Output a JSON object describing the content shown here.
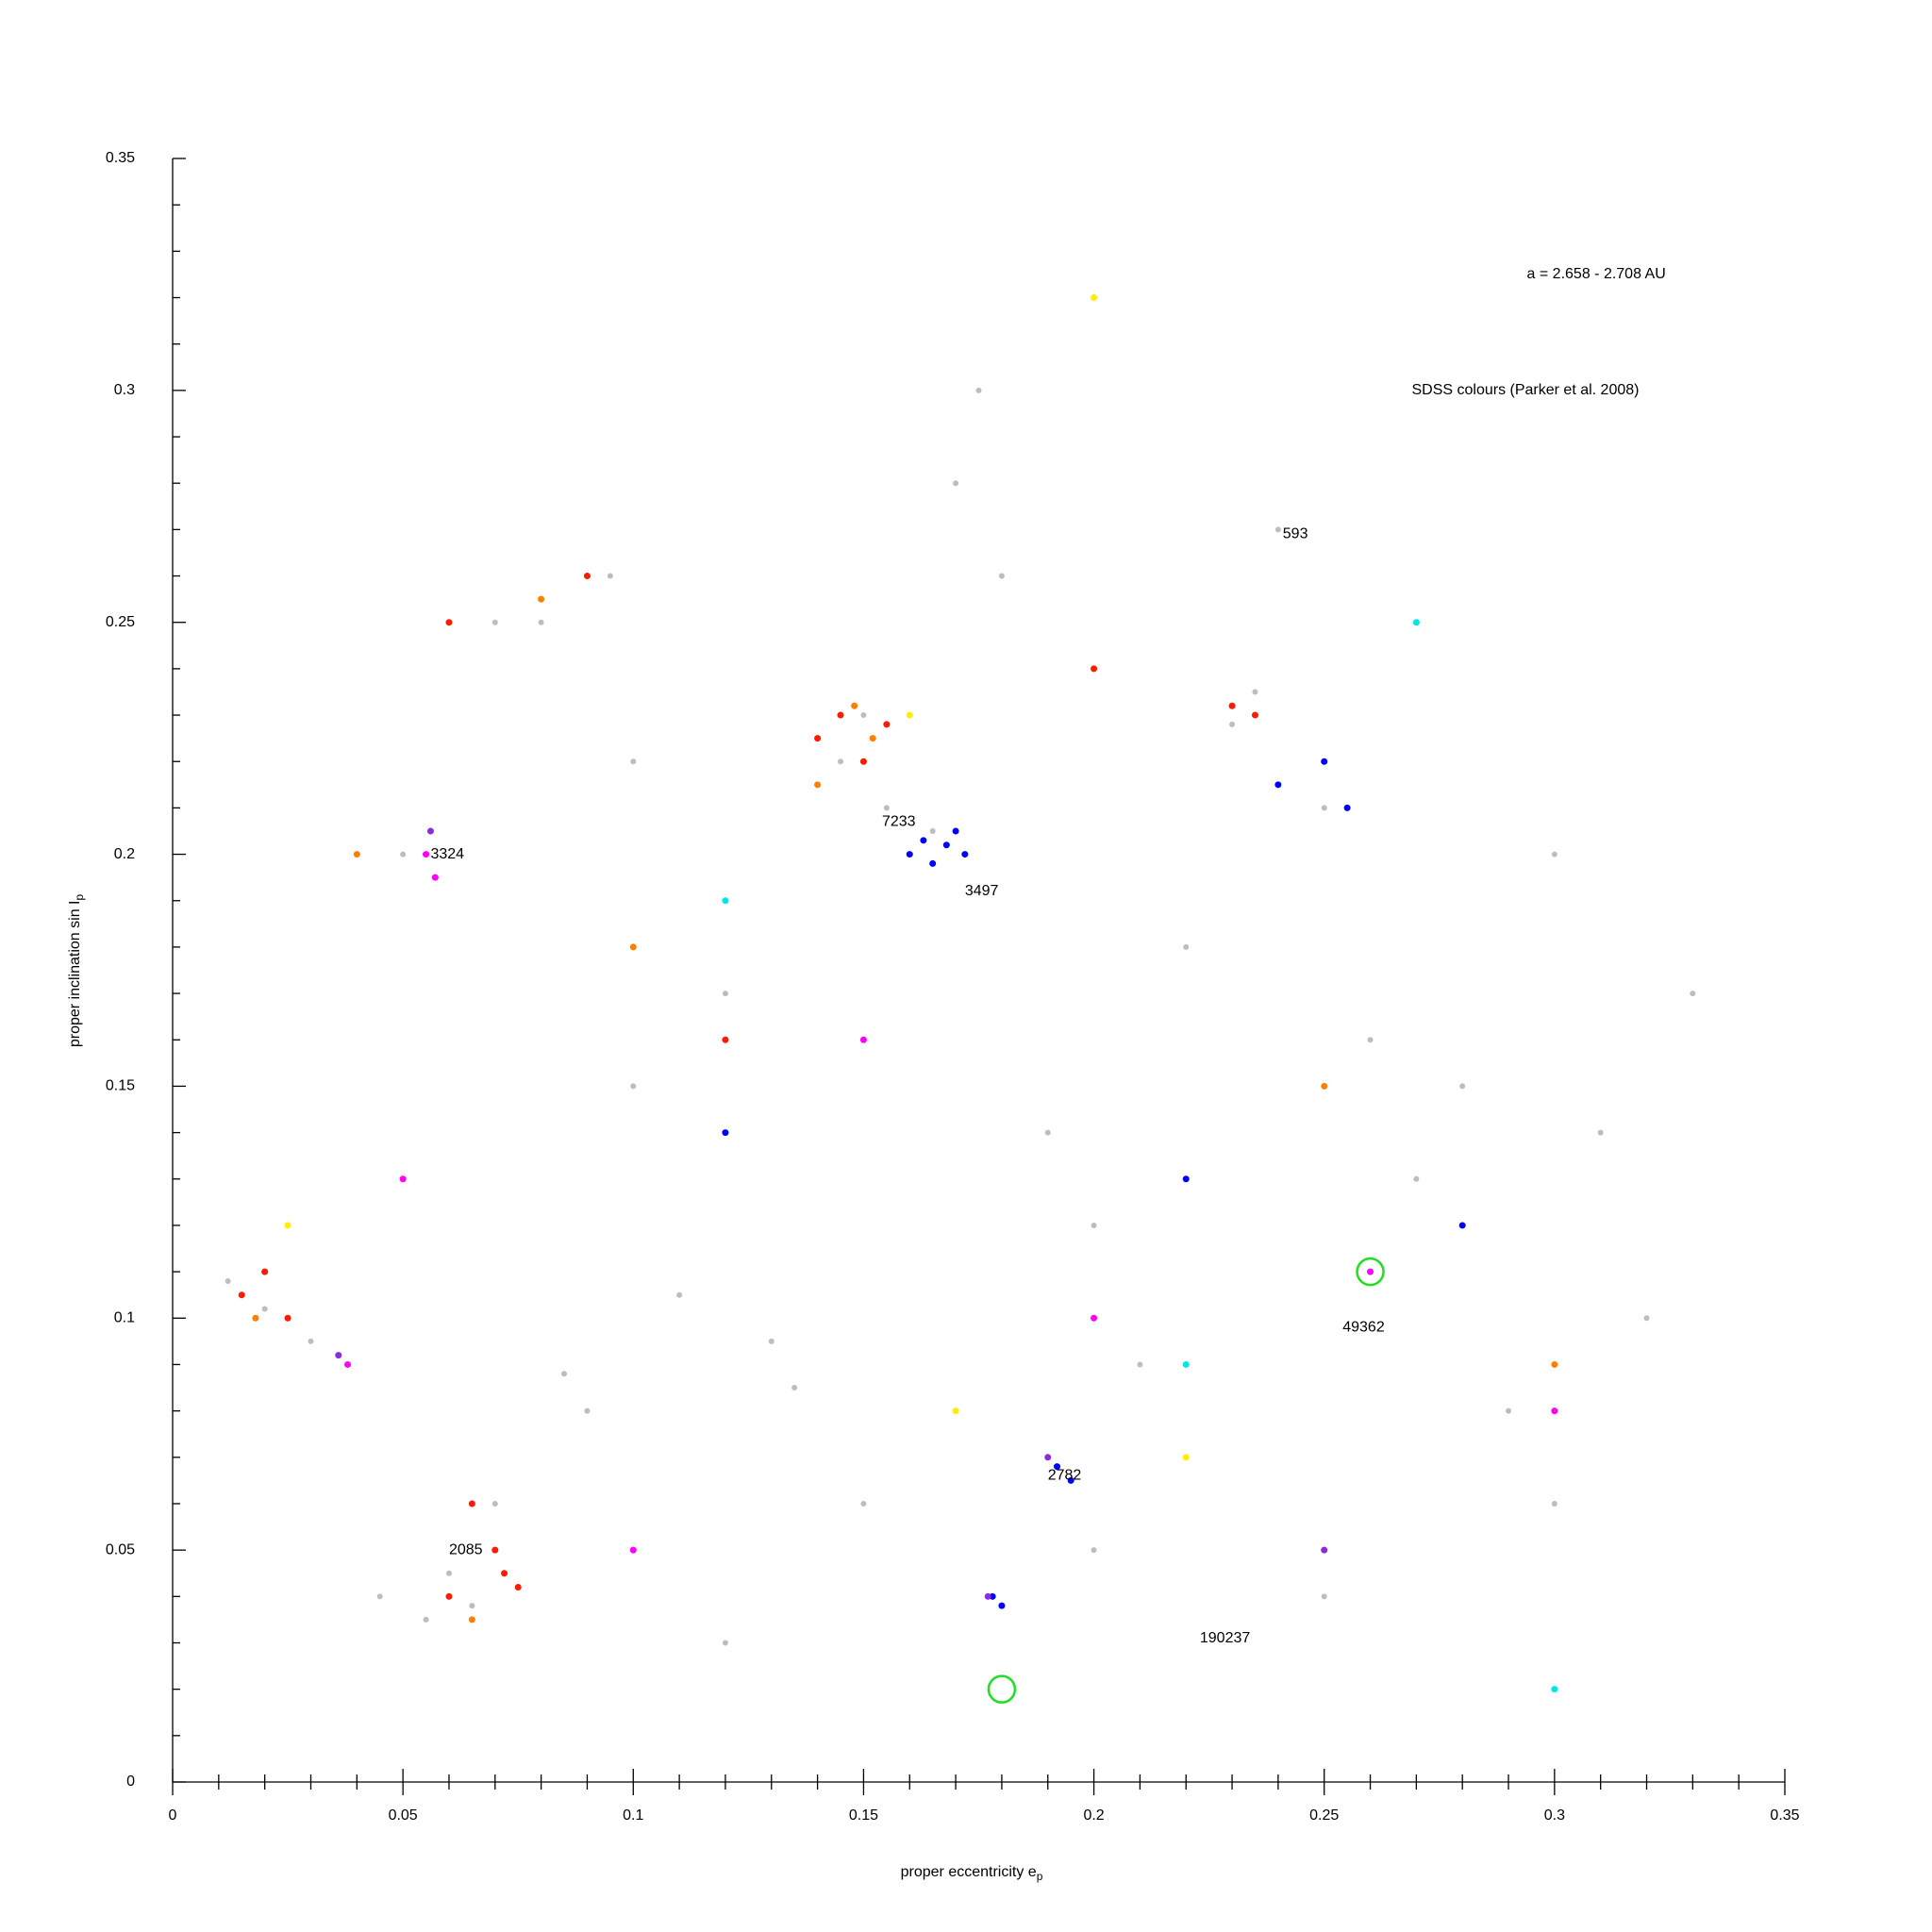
{
  "chart_data": {
    "type": "scatter",
    "x_label": {
      "text": "proper eccentricity e",
      "subscript": "p"
    },
    "y_label": {
      "text": "proper inclination sin I",
      "subscript": "p"
    },
    "xlim": [
      0,
      0.35
    ],
    "ylim": [
      0,
      0.35
    ],
    "xticks": [
      0,
      0.05,
      0.1,
      0.15,
      0.2,
      0.25,
      0.3,
      0.35
    ],
    "yticks": [
      0,
      0.05,
      0.1,
      0.15,
      0.2,
      0.25,
      0.3,
      0.35
    ],
    "xminorticks": [
      0.01,
      0.02,
      0.03,
      0.04,
      0.06,
      0.07,
      0.08,
      0.09,
      0.11,
      0.12,
      0.13,
      0.14,
      0.16,
      0.17,
      0.18,
      0.19,
      0.21,
      0.22,
      0.23,
      0.24,
      0.26,
      0.27,
      0.28,
      0.29,
      0.31,
      0.32,
      0.33,
      0.34
    ],
    "yminorticks": [
      0.01,
      0.02,
      0.03,
      0.04,
      0.06,
      0.07,
      0.08,
      0.09,
      0.11,
      0.12,
      0.13,
      0.14,
      0.16,
      0.17,
      0.18,
      0.19,
      0.21,
      0.22,
      0.23,
      0.24,
      0.26,
      0.27,
      0.28,
      0.29,
      0.31,
      0.32,
      0.33,
      0.34
    ],
    "series": [
      {
        "color": "#bdbdbd",
        "x": [
          0.012,
          0.02,
          0.03,
          0.045,
          0.055,
          0.06,
          0.065,
          0.07,
          0.08,
          0.085,
          0.09,
          0.095,
          0.1,
          0.11,
          0.12,
          0.13,
          0.135,
          0.14,
          0.145,
          0.15,
          0.155,
          0.16,
          0.165,
          0.17,
          0.175,
          0.18,
          0.19,
          0.2,
          0.21,
          0.22,
          0.23,
          0.235,
          0.24,
          0.25,
          0.26,
          0.27,
          0.28,
          0.29,
          0.3,
          0.31,
          0.32,
          0.33,
          0.05,
          0.07,
          0.1,
          0.12,
          0.2,
          0.25,
          0.3,
          0.15
        ],
        "values": [
          0.108,
          0.102,
          0.095,
          0.04,
          0.035,
          0.045,
          0.038,
          0.06,
          0.25,
          0.088,
          0.08,
          0.26,
          0.15,
          0.105,
          0.17,
          0.095,
          0.085,
          0.225,
          0.22,
          0.23,
          0.21,
          0.2,
          0.205,
          0.28,
          0.3,
          0.26,
          0.14,
          0.12,
          0.09,
          0.18,
          0.228,
          0.235,
          0.27,
          0.21,
          0.16,
          0.13,
          0.15,
          0.08,
          0.06,
          0.14,
          0.1,
          0.17,
          0.2,
          0.25,
          0.22,
          0.03,
          0.05,
          0.04,
          0.2,
          0.06
        ]
      },
      {
        "color": "#ff1a00",
        "x": [
          0.015,
          0.02,
          0.025,
          0.06,
          0.065,
          0.07,
          0.072,
          0.075,
          0.14,
          0.145,
          0.15,
          0.155,
          0.235,
          0.23,
          0.06,
          0.09,
          0.2,
          0.12
        ],
        "values": [
          0.105,
          0.11,
          0.1,
          0.04,
          0.06,
          0.05,
          0.045,
          0.042,
          0.225,
          0.23,
          0.22,
          0.228,
          0.23,
          0.232,
          0.25,
          0.26,
          0.24,
          0.16
        ]
      },
      {
        "color": "#ff7f00",
        "x": [
          0.018,
          0.14,
          0.148,
          0.152,
          0.065,
          0.08,
          0.1,
          0.25,
          0.3,
          0.04
        ],
        "values": [
          0.1,
          0.215,
          0.232,
          0.225,
          0.035,
          0.255,
          0.18,
          0.15,
          0.09,
          0.2
        ]
      },
      {
        "color": "#0000ff",
        "x": [
          0.16,
          0.163,
          0.165,
          0.168,
          0.17,
          0.172,
          0.178,
          0.18,
          0.192,
          0.195,
          0.24,
          0.25,
          0.255,
          0.22,
          0.12,
          0.28
        ],
        "values": [
          0.2,
          0.203,
          0.198,
          0.202,
          0.205,
          0.2,
          0.04,
          0.038,
          0.068,
          0.065,
          0.215,
          0.22,
          0.21,
          0.13,
          0.14,
          0.12
        ]
      },
      {
        "color": "#ff00ff",
        "x": [
          0.055,
          0.057,
          0.038,
          0.1,
          0.2,
          0.26,
          0.3,
          0.05,
          0.15
        ],
        "values": [
          0.2,
          0.195,
          0.09,
          0.05,
          0.1,
          0.11,
          0.08,
          0.13,
          0.16
        ]
      },
      {
        "color": "#8a2be2",
        "x": [
          0.056,
          0.036,
          0.177,
          0.19,
          0.25
        ],
        "values": [
          0.205,
          0.092,
          0.04,
          0.07,
          0.05
        ]
      },
      {
        "color": "#ffee00",
        "x": [
          0.025,
          0.16,
          0.2,
          0.17,
          0.22
        ],
        "values": [
          0.12,
          0.23,
          0.32,
          0.08,
          0.07
        ]
      },
      {
        "color": "#00e5e5",
        "x": [
          0.12,
          0.22,
          0.27,
          0.3
        ],
        "values": [
          0.19,
          0.09,
          0.25,
          0.02
        ]
      }
    ],
    "annotations": [
      {
        "text": "a = 2.658 - 2.708 AU",
        "x": 0.294,
        "y": 0.325
      },
      {
        "text": "SDSS colours (Parker et al. 2008)",
        "x": 0.269,
        "y": 0.3
      },
      {
        "text": "593",
        "x": 0.241,
        "y": 0.269
      },
      {
        "text": "7233",
        "x": 0.154,
        "y": 0.207
      },
      {
        "text": "3324",
        "x": 0.056,
        "y": 0.2
      },
      {
        "text": "3497",
        "x": 0.172,
        "y": 0.192
      },
      {
        "text": "49362",
        "x": 0.254,
        "y": 0.098
      },
      {
        "text": "2782",
        "x": 0.19,
        "y": 0.066
      },
      {
        "text": "2085",
        "x": 0.06,
        "y": 0.05
      },
      {
        "text": "190237",
        "x": 0.223,
        "y": 0.031
      }
    ],
    "highlight_circles": {
      "color": "#22dd22",
      "points": [
        {
          "x": 0.18,
          "y": 0.02
        },
        {
          "x": 0.26,
          "y": 0.11
        }
      ]
    }
  }
}
